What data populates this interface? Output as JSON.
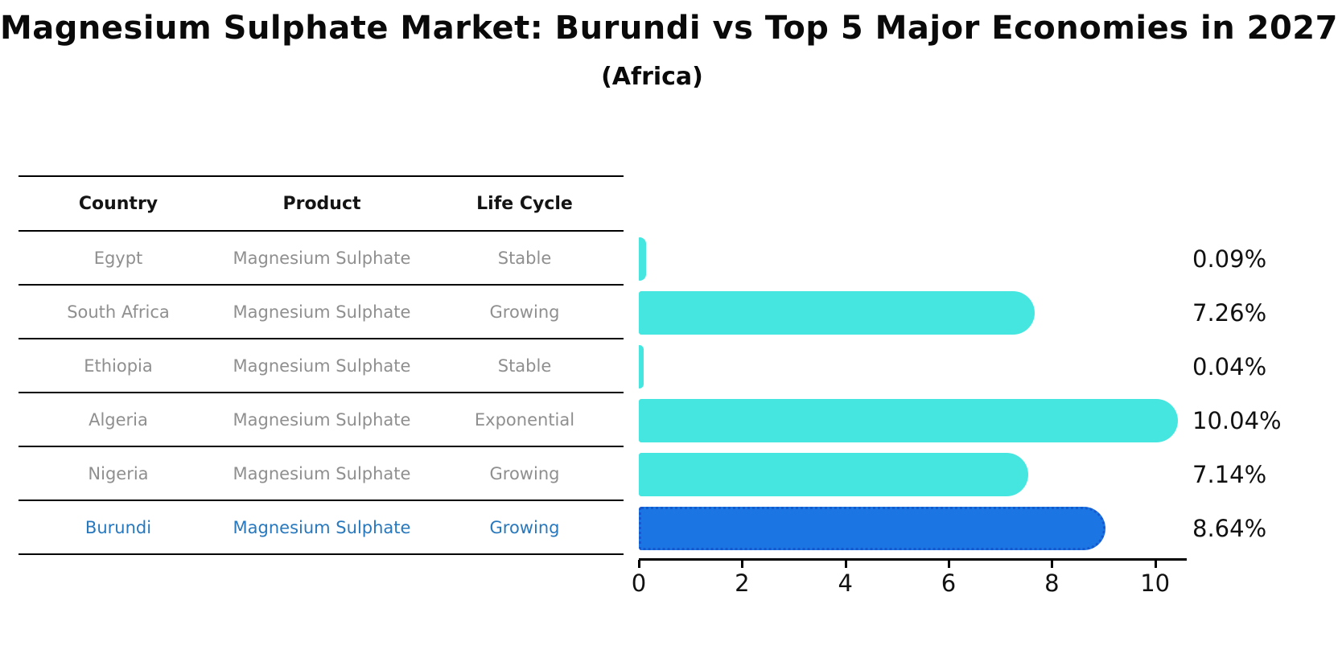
{
  "title": "Magnesium Sulphate Market: Burundi vs Top 5 Major Economies in 2027",
  "subtitle": "(Africa)",
  "table": {
    "headers": [
      "Country",
      "Product",
      "Life Cycle"
    ],
    "rows": [
      {
        "country": "Egypt",
        "product": "Magnesium Sulphate",
        "life_cycle": "Stable",
        "highlight": false
      },
      {
        "country": "South Africa",
        "product": "Magnesium Sulphate",
        "life_cycle": "Growing",
        "highlight": false
      },
      {
        "country": "Ethiopia",
        "product": "Magnesium Sulphate",
        "life_cycle": "Stable",
        "highlight": false
      },
      {
        "country": "Algeria",
        "product": "Magnesium Sulphate",
        "life_cycle": "Exponential",
        "highlight": false
      },
      {
        "country": "Nigeria",
        "product": "Magnesium Sulphate",
        "life_cycle": "Growing",
        "highlight": false
      },
      {
        "country": "Burundi",
        "product": "Magnesium Sulphate",
        "life_cycle": "Growing",
        "highlight": true
      }
    ]
  },
  "chart_data": {
    "type": "bar",
    "orientation": "horizontal",
    "title": "Magnesium Sulphate Market: Burundi vs Top 5 Major Economies in 2027",
    "subtitle": "(Africa)",
    "categories": [
      "Egypt",
      "South Africa",
      "Ethiopia",
      "Algeria",
      "Nigeria",
      "Burundi"
    ],
    "values": [
      0.09,
      7.26,
      0.04,
      10.04,
      7.14,
      8.64
    ],
    "value_labels": [
      "0.09%",
      "7.26%",
      "0.04%",
      "10.04%",
      "7.14%",
      "8.64%"
    ],
    "xlabel": "",
    "ylabel": "",
    "xlim": [
      0,
      10.6
    ],
    "xticks": [
      "0",
      "2",
      "4",
      "6",
      "8",
      "10"
    ],
    "xtick_values": [
      0,
      2,
      4,
      6,
      8,
      10
    ],
    "grid": false,
    "legend": "none",
    "highlight_index": 5,
    "colors": {
      "bar": "#45E6DF",
      "highlight_bar": "#1B76E3",
      "highlight_edge": "#1558CF",
      "highlight_text": "#2878BE"
    }
  }
}
